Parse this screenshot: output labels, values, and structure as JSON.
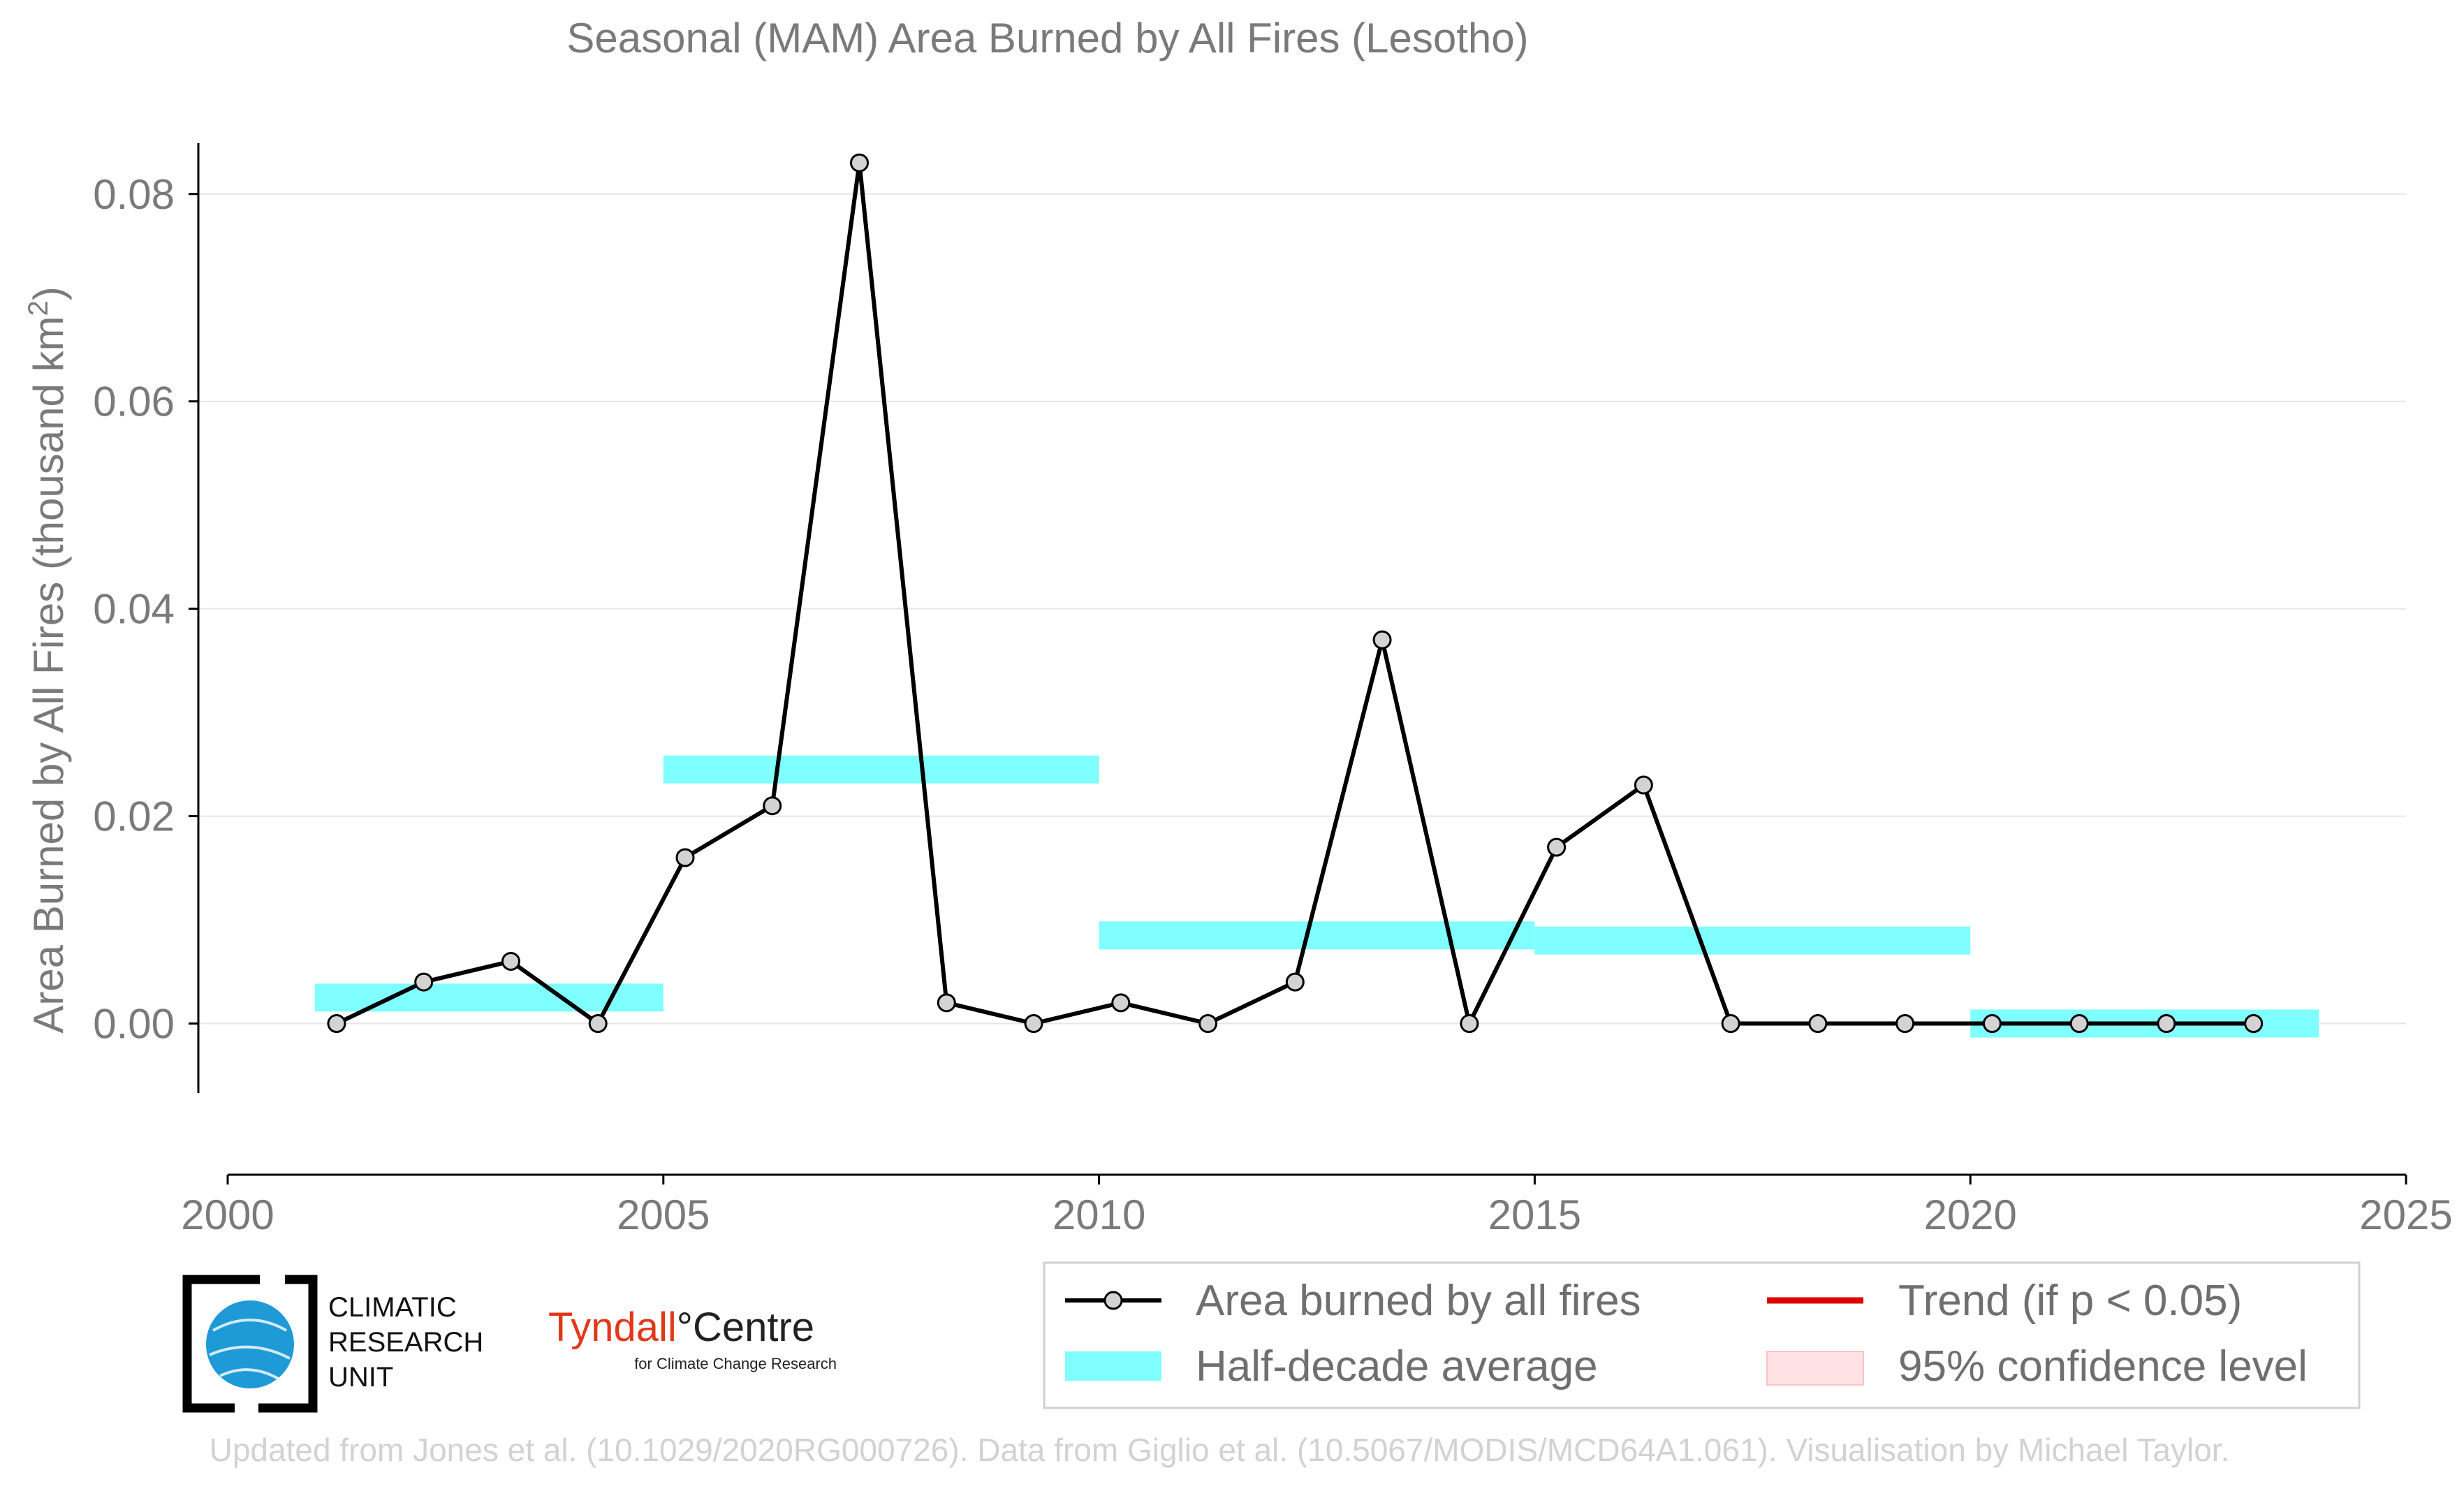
{
  "chart_data": {
    "type": "line",
    "title": "Seasonal (MAM) Area Burned by All Fires (Lesotho)",
    "ylabel": "Area Burned by All Fires (thousand km",
    "ylabel_sup": "2",
    "ylabel_close": ")",
    "xlabel": "",
    "xlim": [
      2000,
      2025
    ],
    "ylim": [
      -0.0067,
      0.0849
    ],
    "x_ticks": [
      2000,
      2005,
      2010,
      2015,
      2020,
      2025
    ],
    "y_ticks": [
      0.0,
      0.02,
      0.04,
      0.06,
      0.08
    ],
    "y_tick_labels": [
      "0.00",
      "0.02",
      "0.04",
      "0.06",
      "0.08"
    ],
    "grid": true,
    "legend_position": "bottom-right",
    "series": [
      {
        "name": "Area burned by all fires",
        "color": "#000000",
        "marker_fill": "#d3d3d3",
        "x": [
          2001.25,
          2002.25,
          2003.25,
          2004.25,
          2005.25,
          2006.25,
          2007.25,
          2008.25,
          2009.25,
          2010.25,
          2011.25,
          2012.25,
          2013.25,
          2014.25,
          2015.25,
          2016.25,
          2017.25,
          2018.25,
          2019.25,
          2020.25,
          2021.25,
          2022.25,
          2023.25
        ],
        "values": [
          0.0,
          0.004,
          0.006,
          0.0,
          0.016,
          0.021,
          0.083,
          0.002,
          0.0,
          0.002,
          0.0,
          0.004,
          0.037,
          0.0,
          0.017,
          0.023,
          0.0,
          0.0,
          0.0,
          0.0,
          0.0,
          0.0,
          0.0
        ]
      }
    ],
    "half_decade_average": {
      "name": "Half-decade average",
      "color": "#7fffff",
      "segments": [
        {
          "x0": 2001,
          "x1": 2005,
          "value": 0.0025
        },
        {
          "x0": 2005,
          "x1": 2010,
          "value": 0.0245
        },
        {
          "x0": 2010,
          "x1": 2015,
          "value": 0.0085
        },
        {
          "x0": 2015,
          "x1": 2020,
          "value": 0.008
        },
        {
          "x0": 2020,
          "x1": 2024,
          "value": 0.0
        }
      ]
    },
    "legend": [
      {
        "label": "Area burned by all fires",
        "kind": "line-marker",
        "color": "#000000"
      },
      {
        "label": "Trend (if p < 0.05)",
        "kind": "line",
        "color": "#e00000"
      },
      {
        "label": "Half-decade average",
        "kind": "band",
        "color": "#7fffff"
      },
      {
        "label": "95% confidence level",
        "kind": "patch",
        "color": "#ffe0e3"
      }
    ]
  },
  "logos": {
    "cru_lines": [
      "CLIMATIC",
      "RESEARCH",
      "UNIT"
    ],
    "tyndall_name": "Tyndall",
    "tyndall_suffix": "°Centre",
    "tyndall_sub": "for Climate Change Research",
    "tyndall_color": "#e2381a",
    "cru_globe_color": "#1e9ad6"
  },
  "footer": "Updated from Jones et al. (10.1029/2020RG000726). Data from Giglio et al. (10.5067/MODIS/MCD64A1.061). Visualisation by Michael Taylor."
}
